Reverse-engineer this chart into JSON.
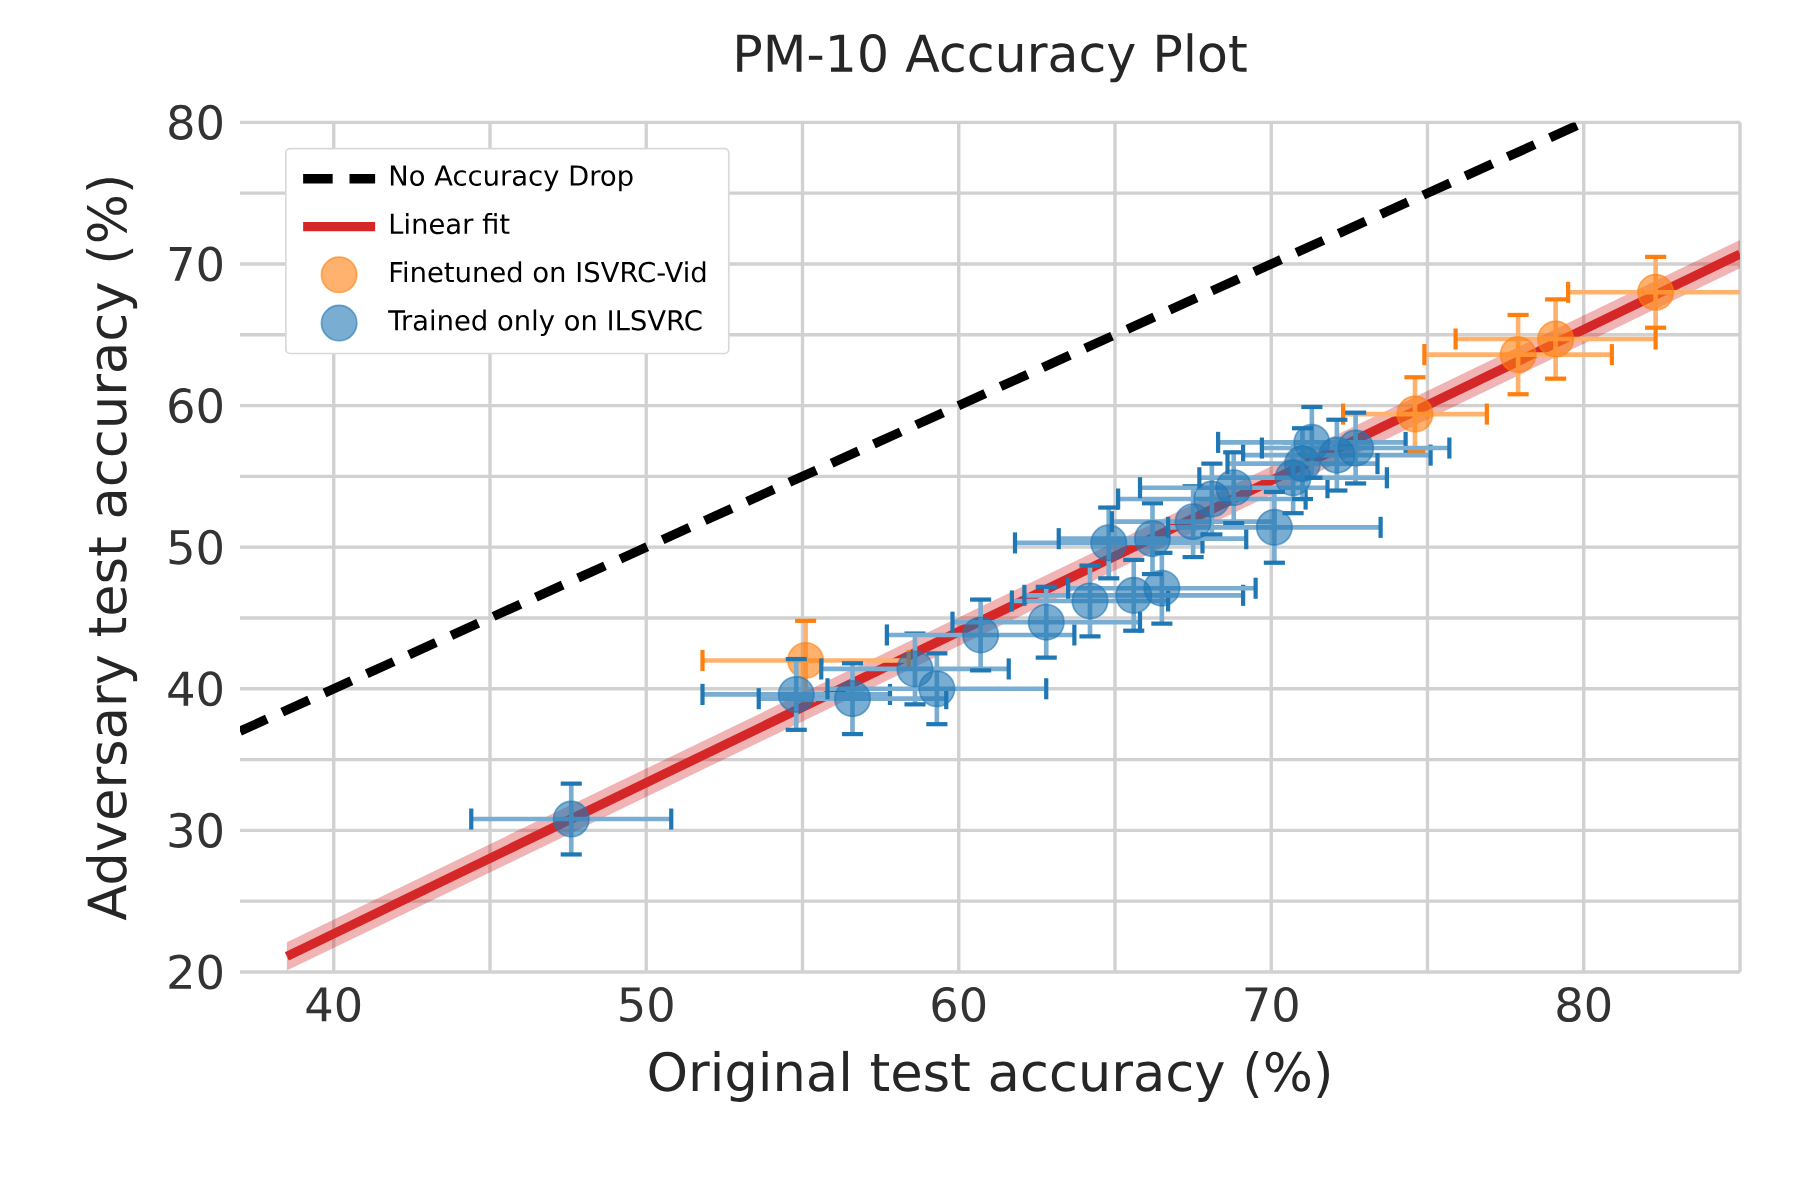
{
  "chart_data": {
    "type": "scatter",
    "title": "PM-10 Accuracy Plot",
    "xlabel": "Original test accuracy (%)",
    "ylabel": "Adversary test accuracy (%)",
    "xlim": [
      37,
      85
    ],
    "ylim": [
      20,
      80
    ],
    "xticks": [
      {
        "value": 40,
        "label": "40"
      },
      {
        "value": 45,
        "label": null
      },
      {
        "value": 50,
        "label": "50"
      },
      {
        "value": 55,
        "label": null
      },
      {
        "value": 60,
        "label": "60"
      },
      {
        "value": 65,
        "label": null
      },
      {
        "value": 70,
        "label": "70"
      },
      {
        "value": 75,
        "label": null
      },
      {
        "value": 80,
        "label": "80"
      },
      {
        "value": 85,
        "label": null
      }
    ],
    "yticks": [
      20,
      {
        "value": 25,
        "label": null
      },
      30,
      {
        "value": 35,
        "label": null
      },
      40,
      {
        "value": 45,
        "label": null
      },
      50,
      {
        "value": 55,
        "label": null
      },
      60,
      {
        "value": 65,
        "label": null
      },
      70,
      {
        "value": 75,
        "label": null
      },
      80
    ],
    "grid": true,
    "legend": "top left",
    "series": [
      {
        "name": "No Accuracy Drop",
        "type": "line",
        "marker": "none",
        "line_style": "dashed",
        "color": "#000000",
        "x": [
          37,
          80
        ],
        "values": [
          37,
          80
        ]
      },
      {
        "name": "Linear fit",
        "type": "line",
        "marker": "none",
        "line_style": "solid",
        "color": "#d62728",
        "x": [
          38.5,
          85
        ],
        "values": [
          21.1,
          70.7
        ],
        "lower": [
          20.1,
          69.7
        ],
        "upper": [
          22.1,
          71.7
        ]
      },
      {
        "name": "Finetuned on ISVRC-Vid",
        "marker": "circle",
        "color": "#ff7f0e",
        "x": [
          55.1,
          74.6,
          77.9,
          79.1,
          82.3
        ],
        "values": [
          42.0,
          59.4,
          63.6,
          64.7,
          68.0
        ],
        "xerrors": [
          3.3,
          2.3,
          3.0,
          3.2,
          2.8
        ],
        "errors": [
          2.8,
          2.6,
          2.8,
          2.8,
          2.5
        ]
      },
      {
        "name": "Trained only on ILSVRC",
        "marker": "circle",
        "color": "#1f77b4",
        "x": [
          47.6,
          54.8,
          56.6,
          58.6,
          59.3,
          60.7,
          62.8,
          64.2,
          65.6,
          66.5,
          64.8,
          66.2,
          67.5,
          68.1,
          68.8,
          70.1,
          70.7,
          71.3,
          72.1,
          72.7,
          71.0
        ],
        "values": [
          30.8,
          39.6,
          39.3,
          41.4,
          40.0,
          43.8,
          44.7,
          46.2,
          46.6,
          47.1,
          50.3,
          50.6,
          51.8,
          53.4,
          54.2,
          51.4,
          54.9,
          57.4,
          56.5,
          57.0,
          55.9
        ],
        "xerrors": [
          3.2,
          3.0,
          3.0,
          3.0,
          3.5,
          3.0,
          3.0,
          2.5,
          3.5,
          3.0,
          3.0,
          3.0,
          2.6,
          3.0,
          3.0,
          3.4,
          3.0,
          3.0,
          3.0,
          3.0,
          2.4
        ],
        "errors": [
          2.5,
          2.5,
          2.5,
          2.5,
          2.5,
          2.5,
          2.5,
          2.5,
          2.5,
          2.5,
          2.5,
          2.5,
          2.5,
          2.5,
          2.5,
          2.5,
          2.5,
          2.5,
          2.5,
          2.5,
          2.5
        ]
      }
    ]
  }
}
